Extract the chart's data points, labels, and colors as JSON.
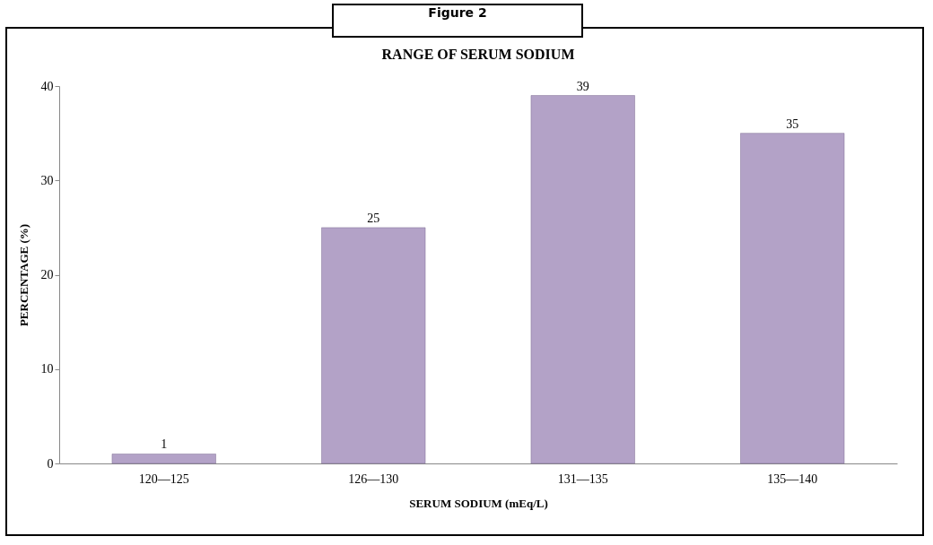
{
  "chart_data": {
    "type": "bar",
    "title": "RANGE OF SERUM SODIUM",
    "xlabel": "SERUM SODIUM (mEq/L)",
    "ylabel": "PERCENTAGE (%)",
    "annotations": [
      "Figure 2"
    ],
    "categories": [
      "120—125",
      "126—130",
      "131—135",
      "135—140"
    ],
    "values": [
      1,
      25,
      39,
      35
    ],
    "color": "#b3a2c7",
    "ylim": [
      0,
      40
    ],
    "yticks": [
      0,
      10,
      20,
      30,
      40
    ],
    "grid": false,
    "data_labels": true
  }
}
